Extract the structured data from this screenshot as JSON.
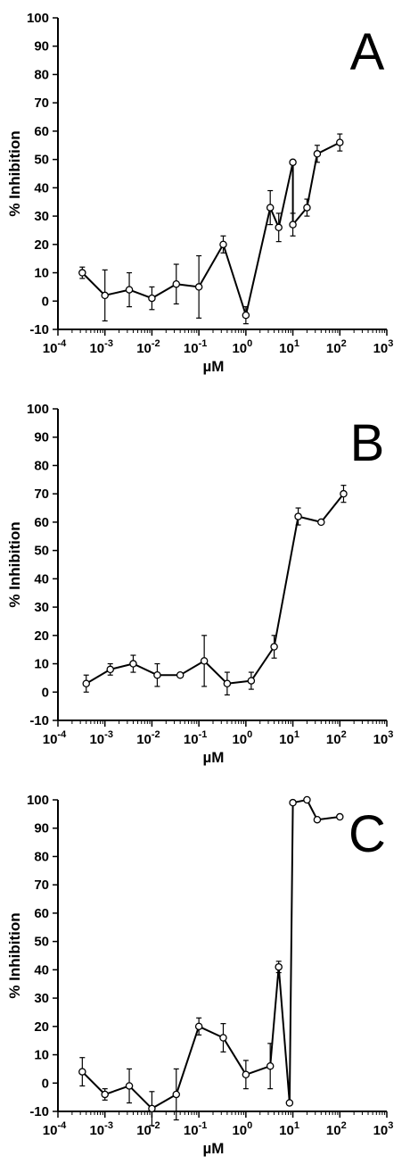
{
  "chart_data": [
    {
      "type": "line",
      "panel_label": "A",
      "xlabel": "µM",
      "ylabel": "% Inhibition",
      "xscale": "log",
      "xlim": [
        0.0001,
        1000
      ],
      "ylim": [
        -10,
        100
      ],
      "x_ticks": [
        -4,
        -3,
        -2,
        -1,
        0,
        1,
        2,
        3
      ],
      "y_ticks": [
        -10,
        0,
        10,
        20,
        30,
        40,
        50,
        60,
        70,
        80,
        90,
        100
      ],
      "marker": "open-circle",
      "x": [
        0.00033,
        0.001,
        0.0033,
        0.01,
        0.033,
        0.1,
        0.33,
        1,
        3.3,
        5,
        10,
        10,
        20,
        33,
        100
      ],
      "y": [
        10,
        2,
        4,
        1,
        6,
        5,
        20,
        -5,
        33,
        26,
        49,
        27,
        33,
        52,
        56
      ],
      "errors": [
        2,
        9,
        6,
        4,
        7,
        11,
        3,
        3,
        6,
        5,
        0,
        4,
        3,
        3,
        3
      ]
    },
    {
      "type": "line",
      "panel_label": "B",
      "xlabel": "µM",
      "ylabel": "% Inhibition",
      "xscale": "log",
      "xlim": [
        0.0001,
        1000
      ],
      "ylim": [
        -10,
        100
      ],
      "x_ticks": [
        -4,
        -3,
        -2,
        -1,
        0,
        1,
        2,
        3
      ],
      "y_ticks": [
        -10,
        0,
        10,
        20,
        30,
        40,
        50,
        60,
        70,
        80,
        90,
        100
      ],
      "marker": "open-circle",
      "x": [
        0.0004,
        0.0013,
        0.004,
        0.013,
        0.04,
        0.13,
        0.4,
        1.3,
        4,
        13,
        40,
        120
      ],
      "y": [
        3,
        8,
        10,
        6,
        6,
        11,
        3,
        4,
        16,
        62,
        60,
        70
      ],
      "errors": [
        3,
        2,
        3,
        4,
        0,
        9,
        4,
        3,
        4,
        3,
        0,
        3
      ]
    },
    {
      "type": "line",
      "panel_label": "C",
      "xlabel": "µM",
      "ylabel": "% Inhibition",
      "xscale": "log",
      "xlim": [
        0.0001,
        1000
      ],
      "ylim": [
        -10,
        100
      ],
      "x_ticks": [
        -4,
        -3,
        -2,
        -1,
        0,
        1,
        2,
        3
      ],
      "y_ticks": [
        -10,
        0,
        10,
        20,
        30,
        40,
        50,
        60,
        70,
        80,
        90,
        100
      ],
      "marker": "open-circle",
      "x": [
        0.00033,
        0.001,
        0.0033,
        0.01,
        0.033,
        0.1,
        0.33,
        1,
        3.3,
        5,
        8.5,
        10,
        20,
        33,
        100
      ],
      "y": [
        4,
        -4,
        -1,
        -9,
        -4,
        20,
        16,
        3,
        6,
        41,
        -7,
        99,
        100,
        93,
        94
      ],
      "errors": [
        5,
        2,
        6,
        6,
        9,
        3,
        5,
        5,
        8,
        2,
        0,
        0,
        0,
        0,
        0
      ]
    }
  ]
}
